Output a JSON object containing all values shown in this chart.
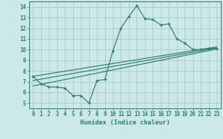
{
  "main_x": [
    0,
    1,
    2,
    3,
    4,
    5,
    6,
    7,
    8,
    9,
    10,
    11,
    12,
    13,
    14,
    15,
    16,
    17,
    18,
    19,
    20,
    21,
    22,
    23
  ],
  "main_y": [
    7.5,
    6.8,
    6.5,
    6.5,
    6.4,
    5.7,
    5.7,
    5.0,
    7.1,
    7.2,
    9.9,
    12.0,
    13.1,
    14.1,
    12.9,
    12.8,
    12.3,
    12.4,
    11.0,
    10.6,
    10.0,
    10.0,
    10.1,
    10.1
  ],
  "line1_x": [
    0,
    23
  ],
  "line1_y": [
    6.6,
    10.05
  ],
  "line2_x": [
    0,
    23
  ],
  "line2_y": [
    7.1,
    10.15
  ],
  "line3_x": [
    0,
    23
  ],
  "line3_y": [
    7.5,
    10.25
  ],
  "color": "#2e7d6e",
  "bg_color": "#cce8e8",
  "grid_color": "#aacece",
  "xlabel": "Humidex (Indice chaleur)",
  "xlim": [
    -0.5,
    23.5
  ],
  "ylim": [
    4.5,
    14.5
  ],
  "yticks": [
    5,
    6,
    7,
    8,
    9,
    10,
    11,
    12,
    13,
    14
  ],
  "xticks": [
    0,
    1,
    2,
    3,
    4,
    5,
    6,
    7,
    8,
    9,
    10,
    11,
    12,
    13,
    14,
    15,
    16,
    17,
    18,
    19,
    20,
    21,
    22,
    23
  ]
}
